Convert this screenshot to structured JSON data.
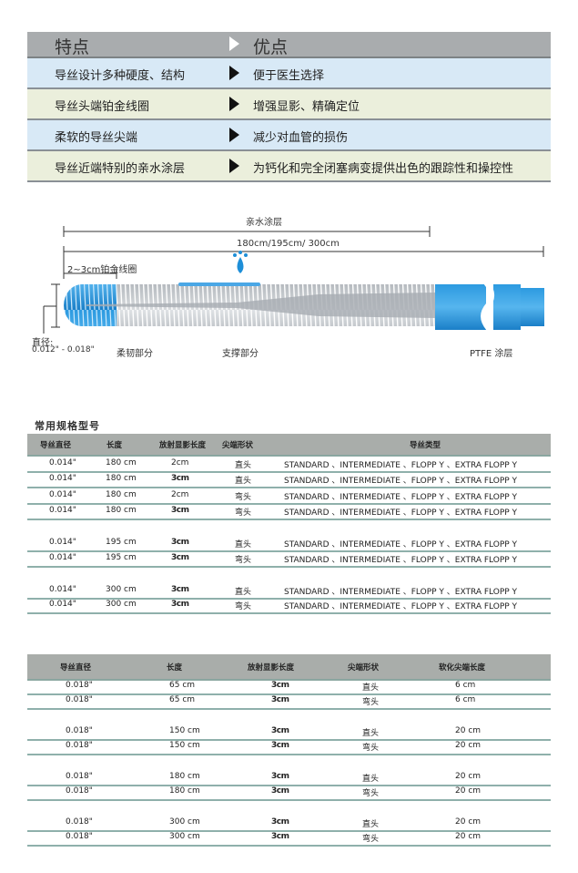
{
  "features": {
    "header": {
      "feature": "特点",
      "benefit": "优点"
    },
    "rows": [
      {
        "feature": "导丝设计多种硬度、结构",
        "benefit": "便于医生选择"
      },
      {
        "feature": "导丝头端铂金线圈",
        "benefit": "增强显影、精确定位"
      },
      {
        "feature": "柔软的导丝尖端",
        "benefit": "减少对血管的损伤"
      },
      {
        "feature": "导丝近端特别的亲水涂层",
        "benefit": "为钙化和完全闭塞病变提供出色的跟踪性和操控性"
      }
    ],
    "colors": {
      "header": "#a9acae",
      "row_blue": "#d8e9f6",
      "row_beige": "#ebefdc"
    }
  },
  "diagram": {
    "hydrophilic_label": "亲水涂层",
    "length_label": "180cm/195cm/ 300cm",
    "coil_label": "2~3cm铂金线圈",
    "diameter_label": "直径:",
    "diameter_value": "0.012\" - 0.018\"",
    "flexible_label": "柔韧部分",
    "support_label": "支撑部分",
    "ptfe_label": "PTFE 涂层",
    "colors": {
      "coating": "#1e8fd8",
      "core": "#b9bec4"
    }
  },
  "table1": {
    "title": "常用规格型号",
    "headers": [
      "导丝直径",
      "长度",
      "放射显影长度",
      "尖端形状",
      "导丝类型"
    ],
    "groups": [
      [
        [
          "0.014\"",
          "180 cm",
          "2cm",
          "直头",
          "STANDARD 、INTERMEDIATE 、FLOPP Y 、EXTRA FLOPP Y"
        ],
        [
          "0.014\"",
          "180 cm",
          "3cm",
          "直头",
          "STANDARD 、INTERMEDIATE 、FLOPP Y 、EXTRA FLOPP Y"
        ],
        [
          "0.014\"",
          "180 cm",
          "2cm",
          "弯头",
          "STANDARD 、INTERMEDIATE 、FLOPP Y 、EXTRA FLOPP Y"
        ],
        [
          "0.014\"",
          "180 cm",
          "3cm",
          "弯头",
          "STANDARD 、INTERMEDIATE 、FLOPP Y 、EXTRA FLOPP Y"
        ]
      ],
      [
        [
          "0.014\"",
          "195 cm",
          "3cm",
          "直头",
          "STANDARD 、INTERMEDIATE 、FLOPP Y 、EXTRA FLOPP Y"
        ],
        [
          "0.014\"",
          "195 cm",
          "3cm",
          "弯头",
          "STANDARD 、INTERMEDIATE 、FLOPP Y 、EXTRA FLOPP Y"
        ]
      ],
      [
        [
          "0.014\"",
          "300 cm",
          "3cm",
          "直头",
          "STANDARD 、INTERMEDIATE 、FLOPP Y 、EXTRA FLOPP Y"
        ],
        [
          "0.014\"",
          "300 cm",
          "3cm",
          "弯头",
          "STANDARD 、INTERMEDIATE 、FLOPP Y 、EXTRA FLOPP Y"
        ]
      ]
    ]
  },
  "table2": {
    "headers": [
      "导丝直径",
      "长度",
      "放射显影长度",
      "尖端形状",
      "软化尖端长度"
    ],
    "groups": [
      [
        [
          "0.018\"",
          "65 cm",
          "3cm",
          "直头",
          "6 cm"
        ],
        [
          "0.018\"",
          "65 cm",
          "3cm",
          "弯头",
          "6 cm"
        ]
      ],
      [
        [
          "0.018\"",
          "150 cm",
          "3cm",
          "直头",
          "20 cm"
        ],
        [
          "0.018\"",
          "150 cm",
          "3cm",
          "弯头",
          "20 cm"
        ]
      ],
      [
        [
          "0.018\"",
          "180 cm",
          "3cm",
          "直头",
          "20 cm"
        ],
        [
          "0.018\"",
          "180 cm",
          "3cm",
          "弯头",
          "20 cm"
        ]
      ],
      [
        [
          "0.018\"",
          "300 cm",
          "3cm",
          "直头",
          "20 cm"
        ],
        [
          "0.018\"",
          "300 cm",
          "3cm",
          "弯头",
          "20 cm"
        ]
      ]
    ]
  }
}
